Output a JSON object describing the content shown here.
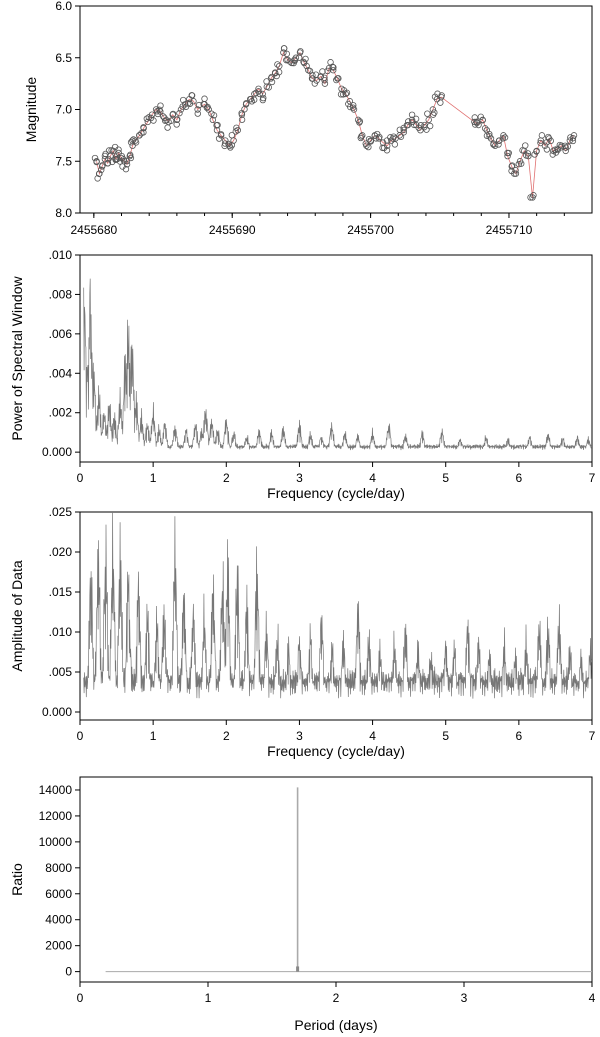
{
  "chart_data": [
    {
      "type": "scatter",
      "title": "",
      "xlabel": "",
      "ylabel": "Magnitude",
      "xlim": [
        2455679,
        2455716
      ],
      "ylim": [
        6.0,
        8.0
      ],
      "y_inverted": true,
      "xticks": [
        2455680,
        2455690,
        2455700,
        2455710
      ],
      "xtick_labels": [
        "2455680",
        "2455690",
        "2455700",
        "2455710"
      ],
      "yticks": [
        6.0,
        6.5,
        7.0,
        7.5,
        8.0
      ],
      "ytick_labels": [
        "6.0",
        "6.5",
        "7.0",
        "7.5",
        "8.0"
      ],
      "marker": "open-circle",
      "marker_color": "#555555",
      "fit_line_color": "#e07070",
      "grid": false,
      "legend": "none",
      "points": [
        [
          2455680.2,
          7.5
        ],
        [
          2455680.4,
          7.62
        ],
        [
          2455680.6,
          7.55
        ],
        [
          2455680.8,
          7.48
        ],
        [
          2455681.0,
          7.52
        ],
        [
          2455681.2,
          7.45
        ],
        [
          2455681.4,
          7.4
        ],
        [
          2455681.6,
          7.48
        ],
        [
          2455681.8,
          7.42
        ],
        [
          2455682.0,
          7.47
        ],
        [
          2455682.2,
          7.5
        ],
        [
          2455682.4,
          7.53
        ],
        [
          2455682.6,
          7.45
        ],
        [
          2455682.8,
          7.35
        ],
        [
          2455683.0,
          7.3
        ],
        [
          2455683.3,
          7.25
        ],
        [
          2455683.6,
          7.18
        ],
        [
          2455683.9,
          7.12
        ],
        [
          2455684.2,
          7.05
        ],
        [
          2455684.5,
          7.0
        ],
        [
          2455684.8,
          7.02
        ],
        [
          2455685.1,
          7.08
        ],
        [
          2455685.4,
          7.12
        ],
        [
          2455685.7,
          7.05
        ],
        [
          2455686.0,
          7.1
        ],
        [
          2455686.3,
          7.0
        ],
        [
          2455686.6,
          6.95
        ],
        [
          2455686.9,
          6.9
        ],
        [
          2455687.2,
          6.92
        ],
        [
          2455687.5,
          7.0
        ],
        [
          2455688.0,
          6.95
        ],
        [
          2455688.3,
          7.0
        ],
        [
          2455688.6,
          7.1
        ],
        [
          2455688.9,
          7.2
        ],
        [
          2455689.2,
          7.25
        ],
        [
          2455689.5,
          7.3
        ],
        [
          2455689.8,
          7.35
        ],
        [
          2455690.1,
          7.3
        ],
        [
          2455690.4,
          7.2
        ],
        [
          2455690.7,
          7.05
        ],
        [
          2455691.0,
          6.95
        ],
        [
          2455691.3,
          6.9
        ],
        [
          2455691.6,
          6.85
        ],
        [
          2455691.9,
          6.8
        ],
        [
          2455692.2,
          6.85
        ],
        [
          2455692.5,
          6.78
        ],
        [
          2455692.8,
          6.7
        ],
        [
          2455693.1,
          6.65
        ],
        [
          2455693.4,
          6.58
        ],
        [
          2455693.7,
          6.45
        ],
        [
          2455694.0,
          6.52
        ],
        [
          2455694.3,
          6.55
        ],
        [
          2455694.6,
          6.5
        ],
        [
          2455694.9,
          6.45
        ],
        [
          2455695.2,
          6.55
        ],
        [
          2455695.5,
          6.62
        ],
        [
          2455695.8,
          6.7
        ],
        [
          2455696.1,
          6.72
        ],
        [
          2455696.4,
          6.68
        ],
        [
          2455696.7,
          6.75
        ],
        [
          2455697.0,
          6.6
        ],
        [
          2455697.3,
          6.62
        ],
        [
          2455697.6,
          6.7
        ],
        [
          2455697.9,
          6.8
        ],
        [
          2455698.2,
          6.85
        ],
        [
          2455698.5,
          6.92
        ],
        [
          2455698.8,
          7.0
        ],
        [
          2455699.1,
          7.1
        ],
        [
          2455699.4,
          7.25
        ],
        [
          2455699.7,
          7.35
        ],
        [
          2455700.0,
          7.3
        ],
        [
          2455700.3,
          7.25
        ],
        [
          2455700.6,
          7.28
        ],
        [
          2455700.9,
          7.32
        ],
        [
          2455701.2,
          7.35
        ],
        [
          2455701.5,
          7.3
        ],
        [
          2455701.8,
          7.28
        ],
        [
          2455702.1,
          7.25
        ],
        [
          2455702.4,
          7.22
        ],
        [
          2455702.7,
          7.15
        ],
        [
          2455703.0,
          7.1
        ],
        [
          2455703.3,
          7.15
        ],
        [
          2455703.6,
          7.2
        ],
        [
          2455703.9,
          7.15
        ],
        [
          2455704.2,
          7.1
        ],
        [
          2455704.5,
          7.0
        ],
        [
          2455704.8,
          6.9
        ],
        [
          2455705.1,
          6.88
        ],
        [
          2455707.5,
          7.12
        ],
        [
          2455707.8,
          7.15
        ],
        [
          2455708.1,
          7.1
        ],
        [
          2455708.4,
          7.2
        ],
        [
          2455708.7,
          7.28
        ],
        [
          2455709.0,
          7.35
        ],
        [
          2455709.3,
          7.3
        ],
        [
          2455709.6,
          7.25
        ],
        [
          2455709.9,
          7.45
        ],
        [
          2455710.2,
          7.55
        ],
        [
          2455710.5,
          7.62
        ],
        [
          2455710.8,
          7.5
        ],
        [
          2455711.1,
          7.4
        ],
        [
          2455711.4,
          7.45
        ],
        [
          2455711.7,
          7.85
        ],
        [
          2455712.0,
          7.4
        ],
        [
          2455712.3,
          7.3
        ],
        [
          2455712.6,
          7.35
        ],
        [
          2455712.9,
          7.28
        ],
        [
          2455713.2,
          7.4
        ],
        [
          2455713.5,
          7.38
        ],
        [
          2455713.8,
          7.35
        ],
        [
          2455714.1,
          7.4
        ],
        [
          2455714.4,
          7.3
        ],
        [
          2455714.7,
          7.25
        ]
      ]
    },
    {
      "type": "line",
      "title": "",
      "xlabel": "Frequency (cycle/day)",
      "ylabel": "Power of Spectral Window",
      "xlim": [
        0,
        7
      ],
      "ylim": [
        -0.0005,
        0.01
      ],
      "xticks": [
        0,
        1,
        2,
        3,
        4,
        5,
        6,
        7
      ],
      "xtick_labels": [
        "0",
        "1",
        "2",
        "3",
        "4",
        "5",
        "6",
        "7"
      ],
      "yticks": [
        0.0,
        0.002,
        0.004,
        0.006,
        0.008,
        0.01
      ],
      "ytick_labels": [
        "0.000",
        ".002",
        ".004",
        ".006",
        ".008",
        ".010"
      ],
      "line_color": "#777777",
      "grid": false,
      "legend": "none",
      "peaks": [
        [
          0.06,
          0.01
        ],
        [
          0.1,
          0.0062
        ],
        [
          0.14,
          0.01
        ],
        [
          0.19,
          0.0052
        ],
        [
          0.26,
          0.0036
        ],
        [
          0.33,
          0.0028
        ],
        [
          0.4,
          0.003
        ],
        [
          0.47,
          0.0022
        ],
        [
          0.55,
          0.0035
        ],
        [
          0.62,
          0.0058
        ],
        [
          0.66,
          0.0078
        ],
        [
          0.71,
          0.0069
        ],
        [
          0.77,
          0.0032
        ],
        [
          0.84,
          0.0022
        ],
        [
          0.92,
          0.0018
        ],
        [
          1.0,
          0.0026
        ],
        [
          1.08,
          0.0014
        ],
        [
          1.16,
          0.0018
        ],
        [
          1.3,
          0.0016
        ],
        [
          1.45,
          0.0014
        ],
        [
          1.58,
          0.0018
        ],
        [
          1.66,
          0.0013
        ],
        [
          1.72,
          0.0028
        ],
        [
          1.8,
          0.0019
        ],
        [
          1.88,
          0.0014
        ],
        [
          2.0,
          0.0022
        ],
        [
          2.1,
          0.0012
        ],
        [
          2.28,
          0.001
        ],
        [
          2.45,
          0.0014
        ],
        [
          2.62,
          0.0012
        ],
        [
          2.78,
          0.0015
        ],
        [
          3.0,
          0.0017
        ],
        [
          3.15,
          0.0011
        ],
        [
          3.3,
          0.001
        ],
        [
          3.44,
          0.0018
        ],
        [
          3.62,
          0.0012
        ],
        [
          3.8,
          0.001
        ],
        [
          4.0,
          0.0012
        ],
        [
          4.22,
          0.0017
        ],
        [
          4.45,
          0.001
        ],
        [
          4.68,
          0.0012
        ],
        [
          4.95,
          0.0014
        ],
        [
          5.2,
          0.0008
        ],
        [
          5.55,
          0.0009
        ],
        [
          5.85,
          0.0008
        ],
        [
          6.15,
          0.001
        ],
        [
          6.4,
          0.0011
        ],
        [
          6.6,
          0.0008
        ],
        [
          6.8,
          0.0009
        ],
        [
          6.95,
          0.0008
        ]
      ]
    },
    {
      "type": "line",
      "title": "",
      "xlabel": "Frequency (cycle/day)",
      "ylabel": "Amplitude of Data",
      "xlim": [
        0,
        7
      ],
      "ylim": [
        -0.001,
        0.025
      ],
      "xticks": [
        0,
        1,
        2,
        3,
        4,
        5,
        6,
        7
      ],
      "xtick_labels": [
        "0",
        "1",
        "2",
        "3",
        "4",
        "5",
        "6",
        "7"
      ],
      "yticks": [
        0.0,
        0.005,
        0.01,
        0.015,
        0.02,
        0.025
      ],
      "ytick_labels": [
        "0.000",
        ".005",
        ".010",
        ".015",
        ".020",
        ".025"
      ],
      "line_color": "#777777",
      "grid": false,
      "legend": "none",
      "peaks": [
        [
          0.15,
          0.022
        ],
        [
          0.25,
          0.025
        ],
        [
          0.35,
          0.025
        ],
        [
          0.45,
          0.025
        ],
        [
          0.55,
          0.025
        ],
        [
          0.66,
          0.021
        ],
        [
          0.8,
          0.02
        ],
        [
          0.92,
          0.016
        ],
        [
          1.05,
          0.014
        ],
        [
          1.15,
          0.016
        ],
        [
          1.3,
          0.025
        ],
        [
          1.42,
          0.018
        ],
        [
          1.55,
          0.016
        ],
        [
          1.7,
          0.015
        ],
        [
          1.82,
          0.019
        ],
        [
          1.95,
          0.021
        ],
        [
          2.02,
          0.023
        ],
        [
          2.15,
          0.021
        ],
        [
          2.28,
          0.016
        ],
        [
          2.42,
          0.023
        ],
        [
          2.55,
          0.013
        ],
        [
          2.7,
          0.012
        ],
        [
          2.85,
          0.01
        ],
        [
          3.0,
          0.011
        ],
        [
          3.15,
          0.012
        ],
        [
          3.3,
          0.015
        ],
        [
          3.45,
          0.01
        ],
        [
          3.6,
          0.011
        ],
        [
          3.8,
          0.017
        ],
        [
          3.95,
          0.011
        ],
        [
          4.1,
          0.01
        ],
        [
          4.3,
          0.011
        ],
        [
          4.45,
          0.013
        ],
        [
          4.62,
          0.01
        ],
        [
          4.8,
          0.009
        ],
        [
          5.0,
          0.011
        ],
        [
          5.12,
          0.01
        ],
        [
          5.3,
          0.014
        ],
        [
          5.45,
          0.01
        ],
        [
          5.6,
          0.009
        ],
        [
          5.8,
          0.01
        ],
        [
          5.95,
          0.009
        ],
        [
          6.1,
          0.011
        ],
        [
          6.28,
          0.014
        ],
        [
          6.4,
          0.013
        ],
        [
          6.55,
          0.014
        ],
        [
          6.7,
          0.01
        ],
        [
          6.85,
          0.009
        ],
        [
          6.98,
          0.01
        ]
      ]
    },
    {
      "type": "line",
      "title": "",
      "xlabel": "Period (days)",
      "ylabel": "Ratio",
      "xlim": [
        0,
        4
      ],
      "ylim": [
        -800,
        15000
      ],
      "xticks": [
        0,
        1,
        2,
        3,
        4
      ],
      "xtick_labels": [
        "0",
        "1",
        "2",
        "3",
        "4"
      ],
      "yticks": [
        0,
        2000,
        4000,
        6000,
        8000,
        10000,
        12000,
        14000
      ],
      "ytick_labels": [
        "0",
        "2000",
        "4000",
        "6000",
        "8000",
        "10000",
        "12000",
        "14000"
      ],
      "line_color": "#aaaaaa",
      "grid": false,
      "legend": "none",
      "x_start": 0.2,
      "baseline": 0,
      "peak_period": 1.7,
      "peak_value": 14200
    }
  ]
}
